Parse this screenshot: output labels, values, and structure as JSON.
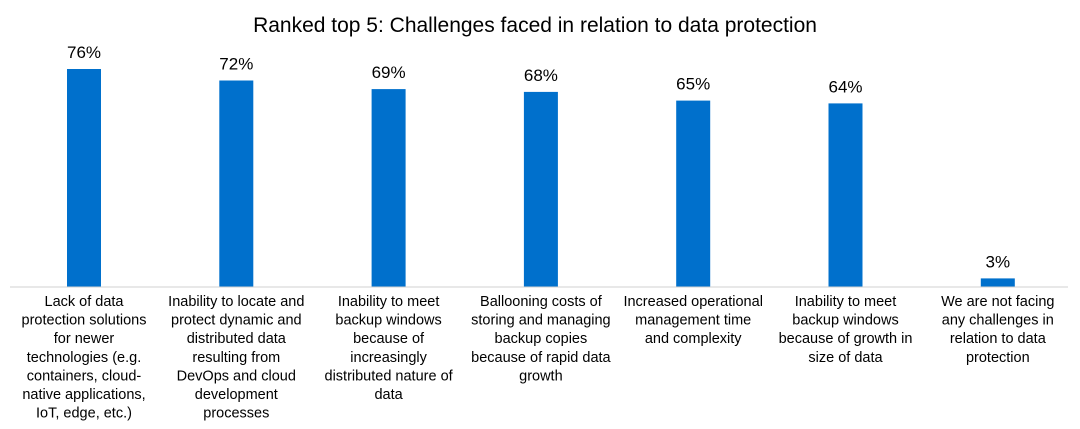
{
  "chart_data": {
    "type": "bar",
    "title": "Ranked top 5: Challenges faced in relation to data protection",
    "xlabel": "",
    "ylabel": "",
    "ylim": [
      0,
      76
    ],
    "grid": false,
    "legend": "none",
    "bar_color": "#0070CC",
    "value_suffix": "%",
    "categories": [
      "Lack of data protection solutions for newer technologies (e.g. containers, cloud-native applications, IoT, edge, etc.)",
      "Inability to locate and protect dynamic and distributed data resulting from DevOps and cloud development processes",
      "Inability to meet backup windows because of increasingly distributed nature of data",
      "Ballooning costs of storing and managing backup copies because of rapid data growth",
      "Increased operational management time and complexity",
      "Inability to meet backup windows because of growth in size of data",
      "We are not facing any challenges in relation to data protection"
    ],
    "category_lines": [
      [
        "Lack of data",
        "protection solutions",
        "for newer",
        "technologies (e.g.",
        "containers, cloud-",
        "native applications,",
        "IoT, edge, etc.)"
      ],
      [
        "Inability to locate and",
        "protect dynamic and",
        "distributed data",
        "resulting from",
        "DevOps and cloud",
        "development",
        "processes"
      ],
      [
        "Inability to meet",
        "backup windows",
        "because of",
        "increasingly",
        "distributed nature of",
        "data"
      ],
      [
        "Ballooning costs of",
        "storing and managing",
        "backup copies",
        "because of rapid data",
        "growth"
      ],
      [
        "Increased operational",
        "management time",
        "and complexity"
      ],
      [
        "Inability to meet",
        "backup windows",
        "because of growth in",
        "size of data"
      ],
      [
        "We are not facing",
        "any challenges in",
        "relation to data",
        "protection"
      ]
    ],
    "values": [
      76,
      72,
      69,
      68,
      65,
      64,
      3
    ]
  }
}
